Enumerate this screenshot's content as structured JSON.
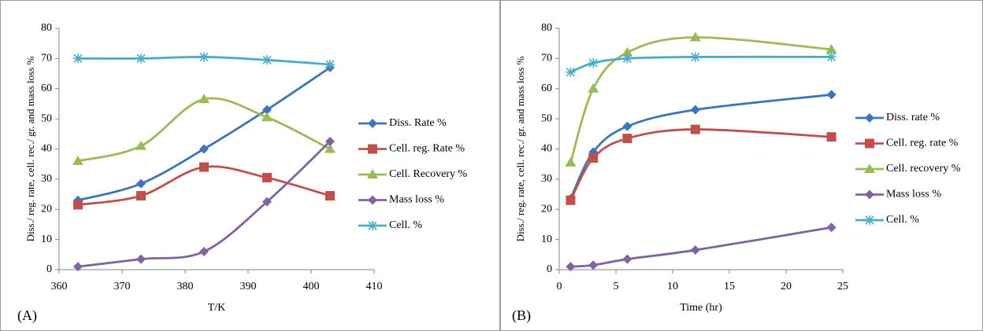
{
  "chart_data": [
    {
      "type": "line",
      "panel_label": "(A)",
      "xlabel": "T/K",
      "ylabel": "Diss./ reg. rate, cell. rec./ gr. and mass loss %",
      "x": [
        363,
        373,
        383,
        393,
        403
      ],
      "xlim": [
        360,
        410
      ],
      "xticks": [
        360,
        370,
        380,
        390,
        400,
        410
      ],
      "ylim": [
        0,
        80
      ],
      "yticks": [
        0,
        10,
        20,
        30,
        40,
        50,
        60,
        70,
        80
      ],
      "legend": "right",
      "series": [
        {
          "name": "Diss. Rate %",
          "color": "#3f74b8",
          "marker": "diamond",
          "values": [
            23,
            28.5,
            40,
            53,
            67
          ]
        },
        {
          "name": "Cell. reg. Rate %",
          "color": "#c0504d",
          "marker": "square",
          "values": [
            21.5,
            24.5,
            34,
            30.5,
            24.5
          ]
        },
        {
          "name": "Cell. Recovery %",
          "color": "#9bbb59",
          "marker": "triangle",
          "values": [
            36,
            41,
            56.5,
            50.5,
            40
          ]
        },
        {
          "name": "Mass loss %",
          "color": "#8064a2",
          "marker": "diamond",
          "values": [
            1,
            3.5,
            6,
            22.5,
            42.5
          ]
        },
        {
          "name": "Cell. %",
          "color": "#4bacc6",
          "marker": "asterisk",
          "values": [
            70,
            70,
            70.5,
            69.5,
            68
          ]
        }
      ]
    },
    {
      "type": "line",
      "panel_label": "(B)",
      "xlabel": "Time (hr)",
      "ylabel": "Diss./ reg. rate, cell. rec./ gr. and mass loss %",
      "x": [
        1,
        3,
        6,
        12,
        24
      ],
      "xlim": [
        0,
        25
      ],
      "xticks": [
        0,
        5,
        10,
        15,
        20,
        25
      ],
      "ylim": [
        0,
        80
      ],
      "yticks": [
        0,
        10,
        20,
        30,
        40,
        50,
        60,
        70,
        80
      ],
      "legend": "right",
      "series": [
        {
          "name": "Diss. rate %",
          "color": "#3f74b8",
          "marker": "diamond",
          "values": [
            23.5,
            39,
            47.5,
            53,
            58
          ]
        },
        {
          "name": "Cell. reg. rate %",
          "color": "#c0504d",
          "marker": "square",
          "values": [
            23,
            37,
            43.5,
            46.5,
            44
          ]
        },
        {
          "name": "Cell. recovery %",
          "color": "#9bbb59",
          "marker": "triangle",
          "values": [
            35.5,
            60,
            72,
            77,
            73
          ]
        },
        {
          "name": "Mass loss %",
          "color": "#8064a2",
          "marker": "diamond",
          "values": [
            1,
            1.5,
            3.5,
            6.5,
            14
          ]
        },
        {
          "name": "Cell. %",
          "color": "#4bacc6",
          "marker": "asterisk",
          "values": [
            65.5,
            68.5,
            70,
            70.5,
            70.5
          ]
        }
      ]
    }
  ]
}
